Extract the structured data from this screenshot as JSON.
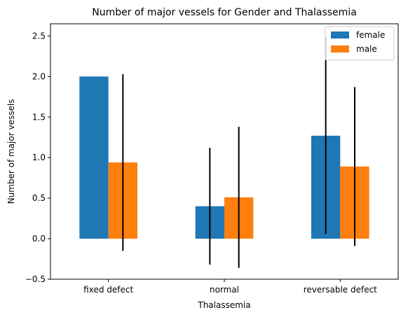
{
  "chart_data": {
    "type": "bar",
    "title": "Number of major vessels for Gender and Thalassemia",
    "xlabel": "Thalassemia",
    "ylabel": "Number of major vessels",
    "categories": [
      "fixed defect",
      "normal",
      "reversable defect"
    ],
    "series": [
      {
        "name": "female",
        "color": "#1f77b4",
        "values": [
          2.0,
          0.4,
          1.27
        ],
        "error": [
          null,
          0.72,
          1.21
        ]
      },
      {
        "name": "male",
        "color": "#ff7f0e",
        "values": [
          0.94,
          0.51,
          0.89
        ],
        "error": [
          1.09,
          0.87,
          0.98
        ]
      }
    ],
    "ylim": [
      -0.5,
      2.65
    ],
    "yticks": [
      "−0.5",
      "0.0",
      "0.5",
      "1.0",
      "1.5",
      "2.0",
      "2.5"
    ],
    "ytick_values": [
      -0.5,
      0.0,
      0.5,
      1.0,
      1.5,
      2.0,
      2.5
    ],
    "grid": false,
    "legend": "top-right"
  }
}
